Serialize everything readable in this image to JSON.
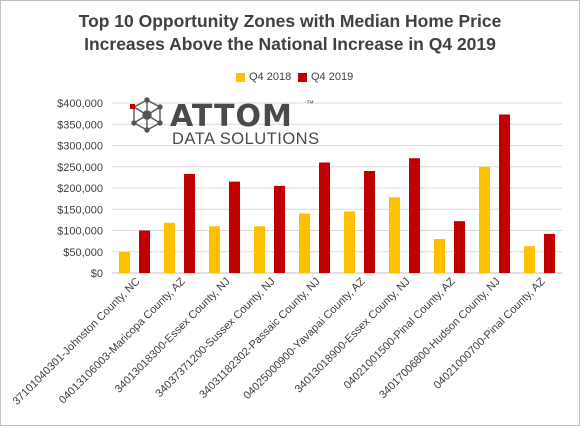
{
  "title_line1": "Top 10 Opportunity Zones with Median Home Price",
  "title_line2": "Increases Above the National Increase in Q4 2019",
  "logo": {
    "name": "ATTOM",
    "subtitle": "DATA SOLUTIONS",
    "trademark": "™"
  },
  "colors": {
    "q4_2018": "#ffc000",
    "q4_2019": "#c00000",
    "gridline": "#d9d9d9",
    "text": "#404040"
  },
  "chart_data": {
    "type": "bar",
    "categories": [
      "37101040301-Johnston County, NC",
      "04013106003-Maricopa County, AZ",
      "34013018300-Essex County, NJ",
      "34037371200-Sussex County, NJ",
      "34031182302-Passaic County, NJ",
      "04025000900-Yavapai County, AZ",
      "34013018900-Essex County, NJ",
      "04021001500-Pinal County, AZ",
      "34017006800-Hudson County, NJ",
      "04021000700-Pinal County, AZ"
    ],
    "series": [
      {
        "name": "Q4 2018",
        "values": [
          50000,
          118000,
          110000,
          110000,
          140000,
          145000,
          178000,
          80000,
          250000,
          63000
        ]
      },
      {
        "name": "Q4 2019",
        "values": [
          100000,
          233000,
          215000,
          205000,
          260000,
          240000,
          270000,
          122000,
          373000,
          92000
        ]
      }
    ],
    "y_ticks": [
      "$0",
      "$50,000",
      "$100,000",
      "$150,000",
      "$200,000",
      "$250,000",
      "$300,000",
      "$350,000",
      "$400,000"
    ],
    "ylim": [
      0,
      400000
    ],
    "grid": true,
    "legend_position": "top-center"
  }
}
